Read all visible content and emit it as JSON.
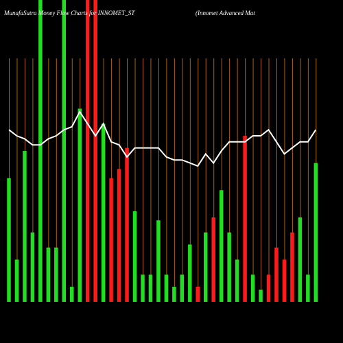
{
  "chart_data": {
    "type": "bar",
    "title": "MunafaSutra  Money Flow  Charts for INNOMET_ST",
    "subtitle": "(Innomet Advanced Mat",
    "ylim": [
      0,
      100
    ],
    "series": [
      {
        "type": "bar",
        "values": [
          41,
          14,
          50,
          23,
          100,
          18,
          18,
          100,
          5,
          64,
          100,
          100,
          59,
          41,
          44,
          51,
          30,
          9,
          9,
          27,
          9,
          5,
          9,
          19,
          5,
          23,
          28,
          37,
          23,
          14,
          55,
          9,
          4,
          9,
          18,
          14,
          23,
          28,
          9,
          46
        ],
        "colors": [
          "#22dd22",
          "#22dd22",
          "#22dd22",
          "#22dd22",
          "#22dd22",
          "#22dd22",
          "#22dd22",
          "#22dd22",
          "#22dd22",
          "#22dd22",
          "#ff1a1a",
          "#ff1a1a",
          "#22dd22",
          "#ff1a1a",
          "#ff1a1a",
          "#ff1a1a",
          "#22dd22",
          "#22dd22",
          "#22dd22",
          "#22dd22",
          "#22dd22",
          "#22dd22",
          "#22dd22",
          "#22dd22",
          "#ff1a1a",
          "#22dd22",
          "#ff1a1a",
          "#22dd22",
          "#22dd22",
          "#22dd22",
          "#ff1a1a",
          "#22dd22",
          "#22dd22",
          "#ff1a1a",
          "#ff1a1a",
          "#ff1a1a",
          "#ff1a1a",
          "#22dd22",
          "#22dd22",
          "#22dd22"
        ]
      },
      {
        "type": "line",
        "color": "#ffffff",
        "values": [
          57,
          55,
          54,
          52,
          52,
          54,
          55,
          57,
          58,
          63,
          59,
          55,
          59,
          53,
          52,
          48,
          51,
          51,
          51,
          51,
          48,
          47,
          47,
          46,
          45,
          49,
          46,
          50,
          53,
          53,
          53,
          55,
          55,
          57,
          53,
          49,
          51,
          53,
          53,
          57
        ]
      }
    ],
    "grid_color": "#b0600c"
  }
}
